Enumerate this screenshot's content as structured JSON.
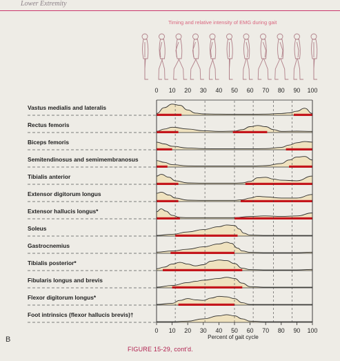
{
  "header": {
    "running_head": "Lower Extremity",
    "figure_caption": "FIGURE 15-29, cont'd.",
    "side_label": "B"
  },
  "colors": {
    "accent": "#c9356b",
    "activity_bar": "#c4161c",
    "emg_fill": "#efe2bf",
    "title_text": "#d9667f"
  },
  "chart_data": {
    "type": "area",
    "title": "Timing and relative intensity of EMG during gait",
    "xlabel": "Percent of gait cycle",
    "ylabel": "",
    "xlim": [
      0,
      100
    ],
    "x_ticks": [
      "0",
      "10",
      "20",
      "30",
      "40",
      "50",
      "60",
      "70",
      "80",
      "90",
      "100"
    ],
    "phase_lines_x": [
      12,
      31,
      50,
      62,
      75,
      87
    ],
    "gait_figures": 11,
    "grid": false,
    "series": [
      {
        "name": "Vastus medialis and lateralis",
        "x": [
          0,
          5,
          10,
          15,
          20,
          25,
          30,
          40,
          50,
          60,
          70,
          80,
          85,
          90,
          95,
          100
        ],
        "y": [
          0.15,
          0.65,
          0.95,
          0.85,
          0.45,
          0.18,
          0.12,
          0.1,
          0.08,
          0.08,
          0.1,
          0.15,
          0.2,
          0.35,
          0.6,
          0.15
        ],
        "bars": [
          [
            0,
            16
          ],
          [
            88,
            100
          ]
        ]
      },
      {
        "name": "Rectus femoris",
        "x": [
          0,
          5,
          10,
          20,
          30,
          40,
          50,
          55,
          60,
          65,
          70,
          75,
          80,
          90,
          100
        ],
        "y": [
          0.1,
          0.3,
          0.45,
          0.3,
          0.15,
          0.1,
          0.12,
          0.25,
          0.5,
          0.6,
          0.5,
          0.25,
          0.1,
          0.12,
          0.1
        ],
        "bars": [
          [
            0,
            14
          ],
          [
            49,
            71
          ]
        ]
      },
      {
        "name": "Biceps femoris",
        "x": [
          0,
          5,
          10,
          20,
          30,
          40,
          50,
          60,
          70,
          80,
          85,
          90,
          95,
          100
        ],
        "y": [
          0.65,
          0.5,
          0.3,
          0.15,
          0.1,
          0.08,
          0.08,
          0.08,
          0.1,
          0.2,
          0.4,
          0.6,
          0.7,
          0.65
        ],
        "bars": [
          [
            0,
            10
          ],
          [
            83,
            100
          ]
        ]
      },
      {
        "name": "Semitendinosus and semimembranosus",
        "x": [
          0,
          5,
          10,
          20,
          30,
          40,
          50,
          60,
          70,
          80,
          85,
          90,
          95,
          100
        ],
        "y": [
          0.55,
          0.4,
          0.2,
          0.1,
          0.08,
          0.08,
          0.08,
          0.08,
          0.12,
          0.3,
          0.6,
          0.85,
          0.9,
          0.6
        ],
        "bars": [
          [
            0,
            7
          ],
          [
            85,
            100
          ]
        ]
      },
      {
        "name": "Tibialis anterior",
        "x": [
          0,
          3,
          8,
          12,
          20,
          30,
          40,
          50,
          55,
          60,
          65,
          70,
          75,
          80,
          90,
          100
        ],
        "y": [
          0.7,
          0.85,
          0.6,
          0.3,
          0.12,
          0.1,
          0.1,
          0.1,
          0.12,
          0.25,
          0.55,
          0.6,
          0.45,
          0.35,
          0.3,
          0.7
        ],
        "bars": [
          [
            0,
            14
          ],
          [
            57,
            100
          ]
        ]
      },
      {
        "name": "Extensor digitorum longus",
        "x": [
          0,
          3,
          8,
          12,
          20,
          30,
          40,
          50,
          55,
          60,
          65,
          70,
          80,
          90,
          100
        ],
        "y": [
          0.7,
          0.8,
          0.55,
          0.3,
          0.12,
          0.1,
          0.1,
          0.1,
          0.15,
          0.3,
          0.45,
          0.4,
          0.3,
          0.3,
          0.6
        ],
        "bars": [
          [
            0,
            14
          ],
          [
            54,
            100
          ]
        ]
      },
      {
        "name": "Extensor hallucis longus*",
        "x": [
          0,
          3,
          6,
          10,
          15,
          20,
          30,
          40,
          50,
          60,
          70,
          80,
          90,
          100
        ],
        "y": [
          0.6,
          0.85,
          0.65,
          0.3,
          0.12,
          0.1,
          0.1,
          0.1,
          0.1,
          0.2,
          0.25,
          0.2,
          0.25,
          0.5
        ],
        "bars": [
          [
            0,
            15
          ],
          [
            50,
            100
          ]
        ]
      },
      {
        "name": "Soleus",
        "x": [
          0,
          10,
          20,
          30,
          40,
          45,
          50,
          53,
          56,
          60,
          70,
          80,
          90,
          100
        ],
        "y": [
          0.05,
          0.15,
          0.35,
          0.55,
          0.8,
          0.95,
          0.9,
          0.6,
          0.25,
          0.08,
          0.05,
          0.05,
          0.05,
          0.05
        ],
        "bars": [
          [
            12,
            52
          ]
        ]
      },
      {
        "name": "Gastrocnemius",
        "x": [
          0,
          10,
          20,
          30,
          40,
          45,
          48,
          52,
          55,
          60,
          70,
          80,
          90,
          100
        ],
        "y": [
          0.1,
          0.2,
          0.35,
          0.55,
          0.8,
          0.95,
          0.85,
          0.45,
          0.2,
          0.08,
          0.05,
          0.05,
          0.05,
          0.1
        ],
        "bars": [
          [
            9,
            50
          ]
        ]
      },
      {
        "name": "Tibialis posterior*",
        "x": [
          0,
          5,
          10,
          15,
          20,
          25,
          30,
          35,
          40,
          45,
          50,
          55,
          60,
          70,
          80,
          90,
          100
        ],
        "y": [
          0.15,
          0.3,
          0.55,
          0.7,
          0.55,
          0.4,
          0.5,
          0.8,
          0.9,
          0.85,
          0.6,
          0.2,
          0.08,
          0.05,
          0.05,
          0.05,
          0.1
        ],
        "bars": [
          [
            4,
            55
          ]
        ]
      },
      {
        "name": "Fibularis longus and brevis",
        "x": [
          0,
          10,
          20,
          25,
          30,
          40,
          45,
          50,
          55,
          60,
          70,
          80,
          90,
          100
        ],
        "y": [
          0.05,
          0.2,
          0.45,
          0.55,
          0.65,
          0.8,
          0.9,
          0.8,
          0.4,
          0.1,
          0.05,
          0.05,
          0.05,
          0.05
        ],
        "bars": [
          [
            10,
            55
          ]
        ]
      },
      {
        "name": "Flexor digitorum longus*",
        "x": [
          0,
          10,
          15,
          20,
          25,
          30,
          35,
          40,
          45,
          50,
          55,
          60,
          70,
          80,
          90,
          100
        ],
        "y": [
          0.05,
          0.15,
          0.4,
          0.55,
          0.45,
          0.4,
          0.6,
          0.75,
          0.7,
          0.55,
          0.2,
          0.05,
          0.05,
          0.05,
          0.05,
          0.05
        ],
        "bars": [
          [
            14,
            50
          ]
        ]
      },
      {
        "name": "Foot intrinsics (flexor hallucis brevis)†",
        "x": [
          0,
          10,
          20,
          30,
          40,
          45,
          50,
          55,
          60,
          70,
          80,
          90,
          100
        ],
        "y": [
          0.05,
          0.05,
          0.1,
          0.3,
          0.55,
          0.65,
          0.55,
          0.3,
          0.1,
          0.05,
          0.05,
          0.05,
          0.05
        ],
        "bars": []
      }
    ]
  }
}
